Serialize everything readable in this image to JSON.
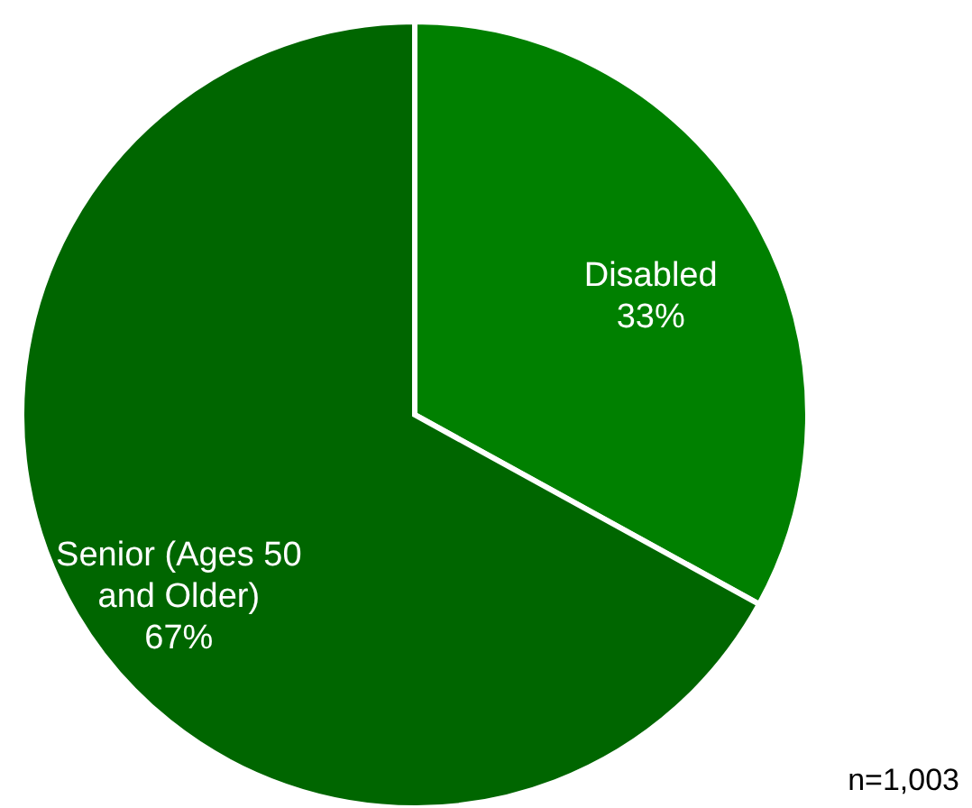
{
  "chart_data": {
    "type": "pie",
    "categories": [
      "Disabled",
      "Senior (Ages 50 and Older)"
    ],
    "values": [
      33,
      67
    ],
    "value_labels": [
      "33%",
      "67%"
    ],
    "colors": [
      "#008000",
      "#006600"
    ],
    "annotations": [
      "n=1,003"
    ]
  }
}
